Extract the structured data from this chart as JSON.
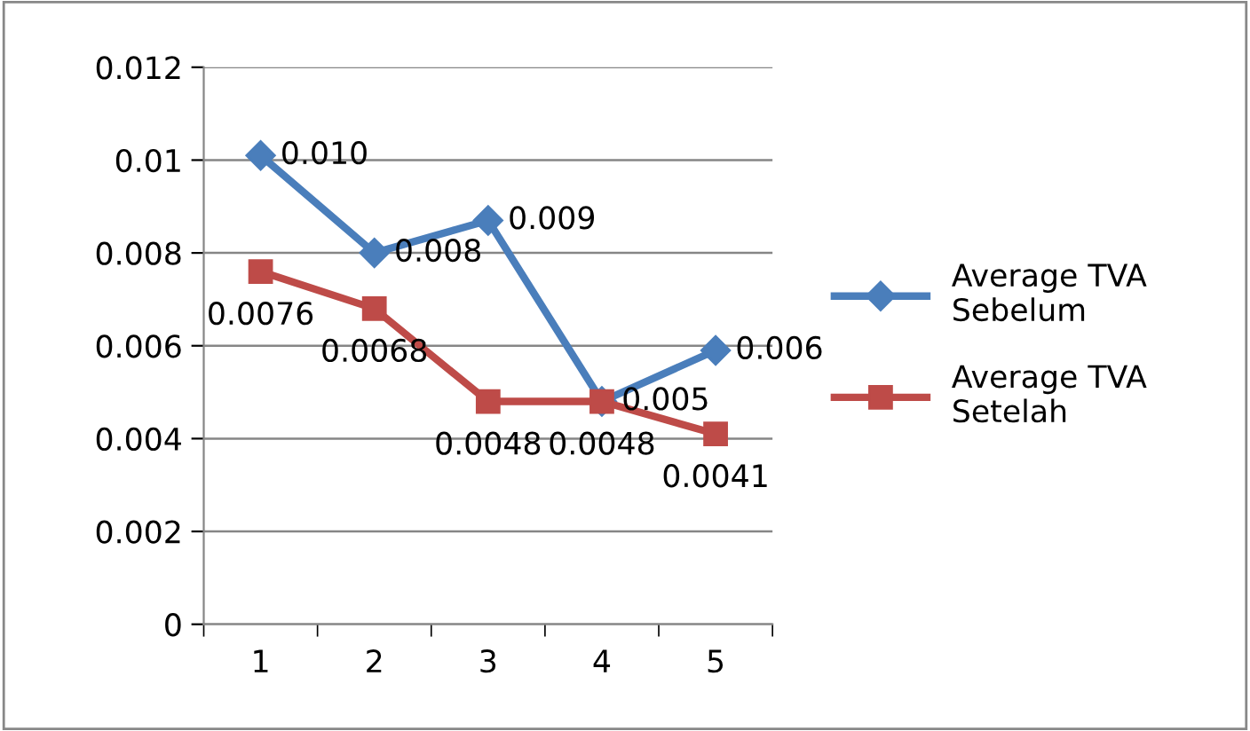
{
  "chart_data": {
    "type": "line",
    "categories": [
      "1",
      "2",
      "3",
      "4",
      "5"
    ],
    "series": [
      {
        "name": "Average TVA Sebelum",
        "color": "#4a7ebb",
        "marker": "diamond",
        "values": [
          0.0101,
          0.008,
          0.0087,
          0.0048,
          0.0059
        ],
        "value_labels": [
          "0.010",
          "0.008",
          "0.009",
          "0.005",
          "0.006"
        ]
      },
      {
        "name": "Average TVA Setelah",
        "color": "#be4b48",
        "marker": "square",
        "values": [
          0.0076,
          0.0068,
          0.0048,
          0.0048,
          0.0041
        ],
        "value_labels": [
          "0.0076",
          "0.0068",
          "0.0048",
          "0.0048",
          "0.0041"
        ]
      }
    ],
    "ylim": [
      0,
      0.012
    ],
    "yticks": [
      {
        "value": 0,
        "label": "0"
      },
      0.002,
      0.004,
      0.006,
      0.008,
      0.01,
      0.012
    ],
    "grid": "y",
    "legend": "right"
  }
}
